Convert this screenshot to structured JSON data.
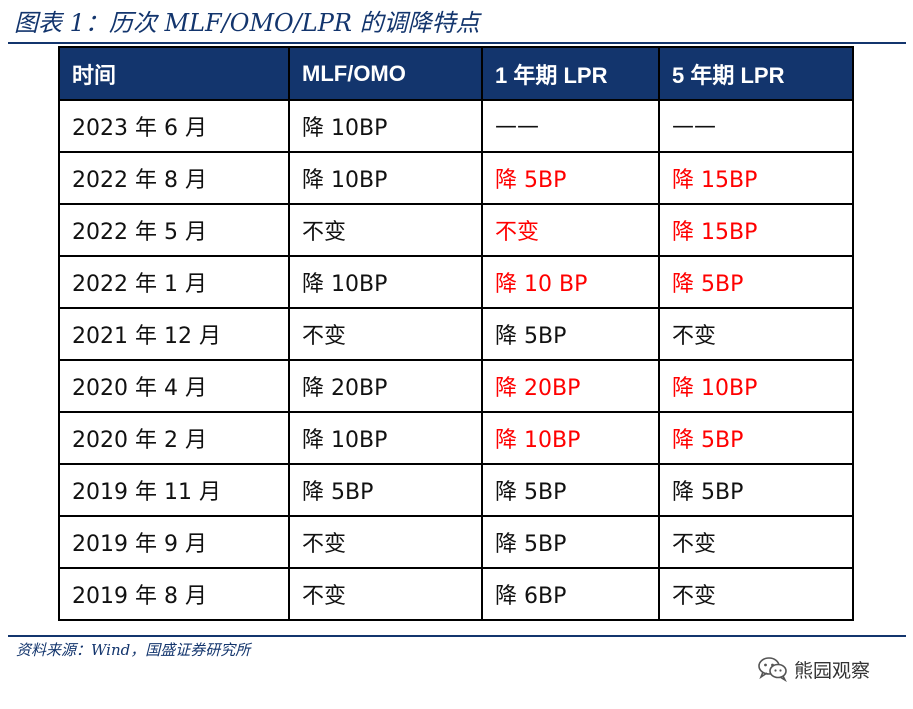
{
  "figure": {
    "title": "图表 1：历次 MLF/OMO/LPR 的调降特点",
    "source": "资料来源：Wind，国盛证券研究所"
  },
  "table": {
    "headers": [
      "时间",
      "MLF/OMO",
      "1 年期 LPR",
      "5 年期 LPR"
    ],
    "rows": [
      {
        "cells": [
          "2023 年 6 月",
          "降 10BP",
          "——",
          "——"
        ],
        "highlight": [
          false,
          false,
          false,
          false
        ]
      },
      {
        "cells": [
          "2022 年 8 月",
          "降 10BP",
          "降 5BP",
          "降 15BP"
        ],
        "highlight": [
          false,
          false,
          true,
          true
        ]
      },
      {
        "cells": [
          "2022 年 5 月",
          "不变",
          "不变",
          "降 15BP"
        ],
        "highlight": [
          false,
          false,
          true,
          true
        ]
      },
      {
        "cells": [
          "2022 年 1 月",
          "降 10BP",
          "降 10 BP",
          "降 5BP"
        ],
        "highlight": [
          false,
          false,
          true,
          true
        ]
      },
      {
        "cells": [
          "2021 年 12 月",
          "不变",
          "降 5BP",
          "不变"
        ],
        "highlight": [
          false,
          false,
          false,
          false
        ]
      },
      {
        "cells": [
          "2020 年 4 月",
          "降 20BP",
          "降 20BP",
          "降 10BP"
        ],
        "highlight": [
          false,
          false,
          true,
          true
        ]
      },
      {
        "cells": [
          "2020 年 2 月",
          "降 10BP",
          "降 10BP",
          "降 5BP"
        ],
        "highlight": [
          false,
          false,
          true,
          true
        ]
      },
      {
        "cells": [
          "2019 年 11 月",
          "降 5BP",
          "降 5BP",
          "降 5BP"
        ],
        "highlight": [
          false,
          false,
          false,
          false
        ]
      },
      {
        "cells": [
          "2019 年 9 月",
          "不变",
          "降 5BP",
          "不变"
        ],
        "highlight": [
          false,
          false,
          false,
          false
        ]
      },
      {
        "cells": [
          "2019 年 8 月",
          "不变",
          "降 6BP",
          "不变"
        ],
        "highlight": [
          false,
          false,
          false,
          false
        ]
      }
    ]
  },
  "watermark": {
    "label": "熊园观察",
    "icon": "wechat-icon"
  },
  "colors": {
    "header_bg": "#13356d",
    "highlight_text": "#ff0000",
    "rule": "#13356d"
  }
}
